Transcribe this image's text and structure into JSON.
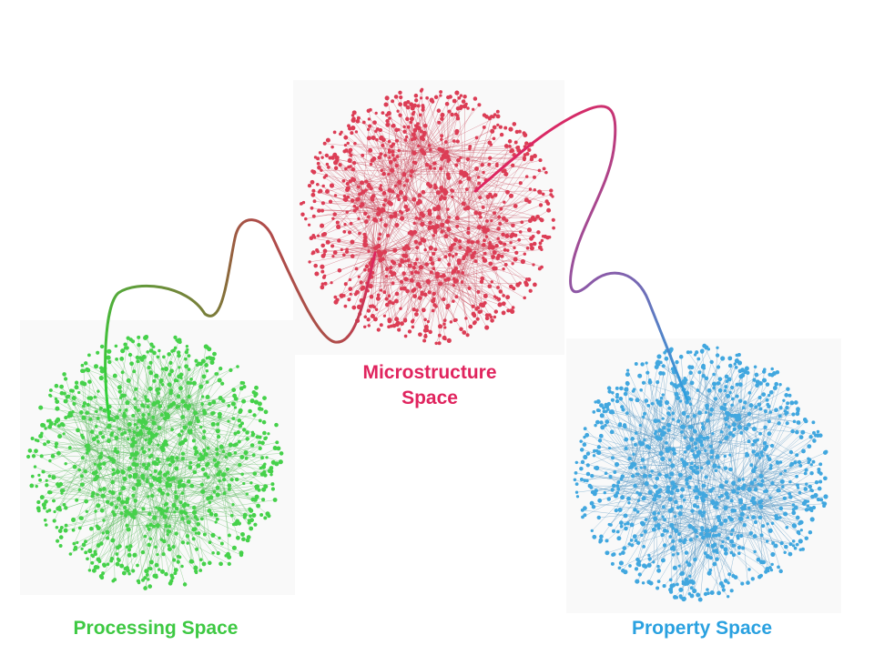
{
  "clusters": [
    {
      "id": "processing",
      "label": "Processing Space",
      "label_lines": [
        "Processing Space"
      ],
      "color": "#3ec943",
      "node_color": "#45d14a",
      "edge_color": "#56b857"
    },
    {
      "id": "microstructure",
      "label": "Microstructure Space",
      "label_lines": [
        "Microstructure",
        "Space"
      ],
      "color": "#e0245e",
      "node_color": "#dc3d55",
      "edge_color": "#c8475a"
    },
    {
      "id": "property",
      "label": "Property Space",
      "label_lines": [
        "Property Space"
      ],
      "color": "#2aa1e0",
      "node_color": "#41a7df",
      "edge_color": "#4a8fbf"
    }
  ],
  "connectors": [
    {
      "from": "processing",
      "to": "microstructure",
      "gradient": [
        "#2fd63a",
        "#8a6a3a",
        "#e0245e"
      ]
    },
    {
      "from": "microstructure",
      "to": "property",
      "gradient": [
        "#e0245e",
        "#8a5aa8",
        "#2aa1e0"
      ]
    }
  ]
}
